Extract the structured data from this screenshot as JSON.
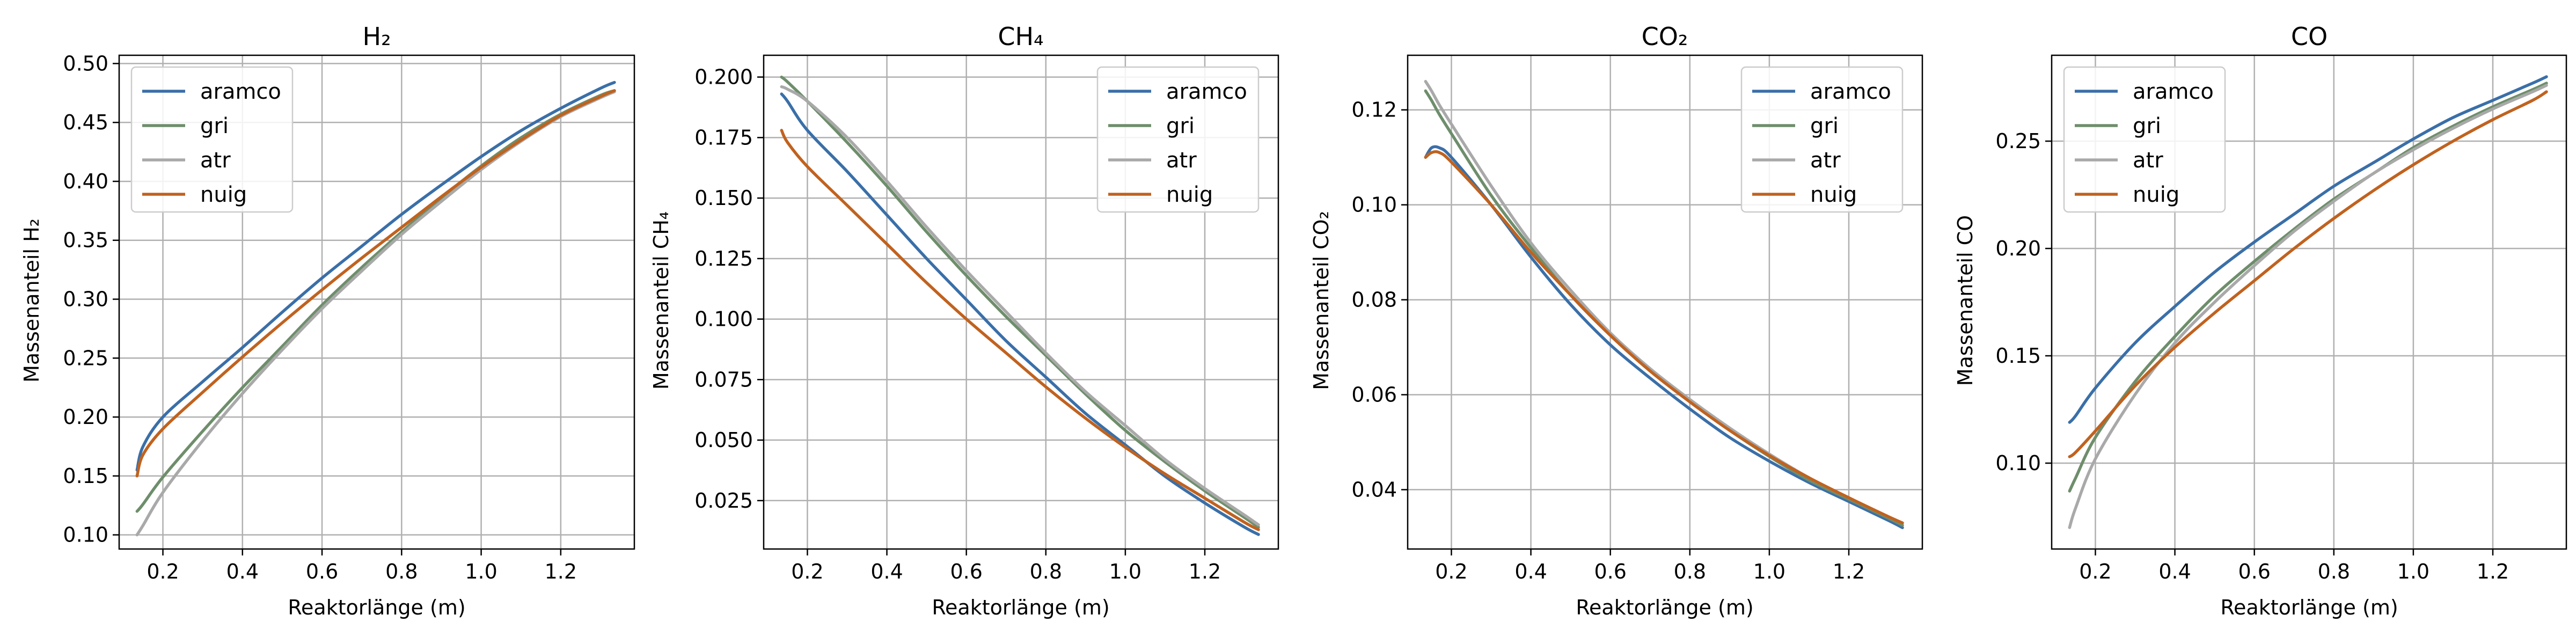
{
  "chart_data": [
    {
      "type": "line",
      "title": "H₂",
      "xlabel": "Reaktorlänge (m)",
      "ylabel": "Massenanteil H₂",
      "xlim": [
        0.09,
        1.385
      ],
      "ylim": [
        0.088,
        0.507
      ],
      "xticks": [
        0.2,
        0.4,
        0.6,
        0.8,
        1.0,
        1.2
      ],
      "xtick_labels": [
        "0.2",
        "0.4",
        "0.6",
        "0.8",
        "1.0",
        "1.2"
      ],
      "yticks": [
        0.1,
        0.15,
        0.2,
        0.25,
        0.3,
        0.35,
        0.4,
        0.45,
        0.5
      ],
      "ytick_labels": [
        "0.10",
        "0.15",
        "0.20",
        "0.25",
        "0.30",
        "0.35",
        "0.40",
        "0.45",
        "0.50"
      ],
      "legend": "top-left",
      "grid": true,
      "x": [
        0.135,
        0.15,
        0.2,
        0.3,
        0.4,
        0.5,
        0.6,
        0.7,
        0.8,
        0.9,
        1.0,
        1.1,
        1.2,
        1.3,
        1.335
      ],
      "series": [
        {
          "name": "aramco",
          "color": "#3a6fa8",
          "values": [
            0.155,
            0.175,
            0.2,
            0.23,
            0.259,
            0.289,
            0.318,
            0.345,
            0.372,
            0.397,
            0.421,
            0.443,
            0.462,
            0.479,
            0.484
          ]
        },
        {
          "name": "gri",
          "color": "#6e8e6b",
          "values": [
            0.12,
            0.126,
            0.149,
            0.188,
            0.225,
            0.26,
            0.295,
            0.327,
            0.357,
            0.386,
            0.413,
            0.437,
            0.457,
            0.473,
            0.477
          ]
        },
        {
          "name": "atr",
          "color": "#a9a9a9",
          "values": [
            0.1,
            0.108,
            0.136,
            0.18,
            0.22,
            0.257,
            0.292,
            0.324,
            0.355,
            0.383,
            0.41,
            0.434,
            0.455,
            0.471,
            0.476
          ]
        },
        {
          "name": "nuig",
          "color": "#c0621f",
          "values": [
            0.15,
            0.168,
            0.19,
            0.221,
            0.251,
            0.28,
            0.308,
            0.335,
            0.361,
            0.387,
            0.412,
            0.435,
            0.456,
            0.472,
            0.477
          ]
        }
      ]
    },
    {
      "type": "line",
      "title": "CH₄",
      "xlabel": "Reaktorlänge (m)",
      "ylabel": "Massenanteil CH₄",
      "xlim": [
        0.09,
        1.385
      ],
      "ylim": [
        0.005,
        0.209
      ],
      "xticks": [
        0.2,
        0.4,
        0.6,
        0.8,
        1.0,
        1.2
      ],
      "xtick_labels": [
        "0.2",
        "0.4",
        "0.6",
        "0.8",
        "1.0",
        "1.2"
      ],
      "yticks": [
        0.025,
        0.05,
        0.075,
        0.1,
        0.125,
        0.15,
        0.175,
        0.2
      ],
      "ytick_labels": [
        "0.025",
        "0.050",
        "0.075",
        "0.100",
        "0.125",
        "0.150",
        "0.175",
        "0.200"
      ],
      "legend": "top-right",
      "grid": true,
      "x": [
        0.135,
        0.15,
        0.2,
        0.3,
        0.4,
        0.5,
        0.6,
        0.7,
        0.8,
        0.9,
        1.0,
        1.1,
        1.2,
        1.3,
        1.335
      ],
      "series": [
        {
          "name": "aramco",
          "color": "#3a6fa8",
          "values": [
            0.193,
            0.19,
            0.178,
            0.161,
            0.143,
            0.125,
            0.108,
            0.091,
            0.076,
            0.061,
            0.048,
            0.035,
            0.024,
            0.014,
            0.011
          ]
        },
        {
          "name": "gri",
          "color": "#6e8e6b",
          "values": [
            0.2,
            0.198,
            0.19,
            0.173,
            0.155,
            0.136,
            0.118,
            0.101,
            0.085,
            0.069,
            0.054,
            0.041,
            0.029,
            0.018,
            0.014
          ]
        },
        {
          "name": "atr",
          "color": "#a9a9a9",
          "values": [
            0.196,
            0.195,
            0.19,
            0.175,
            0.157,
            0.138,
            0.12,
            0.103,
            0.086,
            0.07,
            0.056,
            0.042,
            0.03,
            0.019,
            0.015
          ]
        },
        {
          "name": "nuig",
          "color": "#c0621f",
          "values": [
            0.178,
            0.173,
            0.163,
            0.147,
            0.131,
            0.115,
            0.1,
            0.086,
            0.072,
            0.059,
            0.047,
            0.036,
            0.026,
            0.016,
            0.013
          ]
        }
      ]
    },
    {
      "type": "line",
      "title": "CO₂",
      "xlabel": "Reaktorlänge (m)",
      "ylabel": "Massenanteil CO₂",
      "xlim": [
        0.09,
        1.385
      ],
      "ylim": [
        0.0275,
        0.1315
      ],
      "xticks": [
        0.2,
        0.4,
        0.6,
        0.8,
        1.0,
        1.2
      ],
      "xtick_labels": [
        "0.2",
        "0.4",
        "0.6",
        "0.8",
        "1.0",
        "1.2"
      ],
      "yticks": [
        0.04,
        0.06,
        0.08,
        0.1,
        0.12
      ],
      "ytick_labels": [
        "0.04",
        "0.06",
        "0.08",
        "0.10",
        "0.12"
      ],
      "legend": "top-right",
      "grid": true,
      "x": [
        0.135,
        0.15,
        0.17,
        0.2,
        0.3,
        0.4,
        0.5,
        0.6,
        0.7,
        0.8,
        0.9,
        1.0,
        1.1,
        1.2,
        1.3,
        1.335
      ],
      "series": [
        {
          "name": "aramco",
          "color": "#3a6fa8",
          "values": [
            0.11,
            0.112,
            0.112,
            0.11,
            0.1,
            0.089,
            0.079,
            0.0705,
            0.0635,
            0.057,
            0.051,
            0.046,
            0.0415,
            0.0375,
            0.0335,
            0.032
          ]
        },
        {
          "name": "gri",
          "color": "#6e8e6b",
          "values": [
            0.124,
            0.122,
            0.119,
            0.115,
            0.102,
            0.091,
            0.081,
            0.0725,
            0.065,
            0.0585,
            0.0525,
            0.047,
            0.042,
            0.038,
            0.034,
            0.0325
          ]
        },
        {
          "name": "atr",
          "color": "#a9a9a9",
          "values": [
            0.126,
            0.124,
            0.121,
            0.117,
            0.104,
            0.092,
            0.082,
            0.073,
            0.0655,
            0.059,
            0.053,
            0.0475,
            0.0425,
            0.0383,
            0.0343,
            0.033
          ]
        },
        {
          "name": "nuig",
          "color": "#c0621f",
          "values": [
            0.11,
            0.111,
            0.111,
            0.109,
            0.1,
            0.09,
            0.081,
            0.0725,
            0.065,
            0.0585,
            0.0525,
            0.0472,
            0.0425,
            0.0383,
            0.0343,
            0.033
          ]
        }
      ]
    },
    {
      "type": "line",
      "title": "CO",
      "xlabel": "Reaktorlänge (m)",
      "ylabel": "Massenanteil CO",
      "xlim": [
        0.09,
        1.385
      ],
      "ylim": [
        0.06,
        0.29
      ],
      "xticks": [
        0.2,
        0.4,
        0.6,
        0.8,
        1.0,
        1.2
      ],
      "xtick_labels": [
        "0.2",
        "0.4",
        "0.6",
        "0.8",
        "1.0",
        "1.2"
      ],
      "yticks": [
        0.1,
        0.15,
        0.2,
        0.25
      ],
      "ytick_labels": [
        "0.10",
        "0.15",
        "0.20",
        "0.25"
      ],
      "legend": "top-left",
      "grid": true,
      "x": [
        0.135,
        0.15,
        0.2,
        0.3,
        0.4,
        0.5,
        0.6,
        0.7,
        0.8,
        0.9,
        1.0,
        1.1,
        1.2,
        1.3,
        1.335
      ],
      "series": [
        {
          "name": "aramco",
          "color": "#3a6fa8",
          "values": [
            0.119,
            0.122,
            0.135,
            0.156,
            0.173,
            0.189,
            0.203,
            0.216,
            0.229,
            0.24,
            0.251,
            0.261,
            0.269,
            0.277,
            0.28
          ]
        },
        {
          "name": "gri",
          "color": "#6e8e6b",
          "values": [
            0.087,
            0.093,
            0.112,
            0.138,
            0.159,
            0.178,
            0.194,
            0.209,
            0.223,
            0.235,
            0.247,
            0.257,
            0.266,
            0.274,
            0.277
          ]
        },
        {
          "name": "atr",
          "color": "#a9a9a9",
          "values": [
            0.07,
            0.079,
            0.102,
            0.132,
            0.156,
            0.175,
            0.192,
            0.208,
            0.222,
            0.235,
            0.246,
            0.256,
            0.265,
            0.273,
            0.276
          ]
        },
        {
          "name": "nuig",
          "color": "#c0621f",
          "values": [
            0.103,
            0.105,
            0.115,
            0.136,
            0.154,
            0.17,
            0.185,
            0.2,
            0.214,
            0.227,
            0.239,
            0.25,
            0.26,
            0.269,
            0.273
          ]
        }
      ]
    }
  ]
}
